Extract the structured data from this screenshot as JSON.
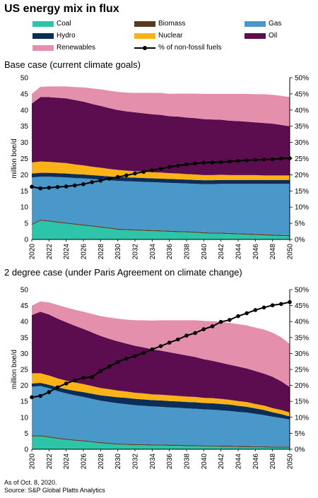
{
  "title": "US energy mix in flux",
  "legend": [
    {
      "key": "Coal",
      "label": "Coal",
      "color": "#2ec4a9"
    },
    {
      "key": "Biomass",
      "label": "Biomass",
      "color": "#5c3a1e"
    },
    {
      "key": "Gas",
      "label": "Gas",
      "color": "#4a97c9"
    },
    {
      "key": "Hydro",
      "label": "Hydro",
      "color": "#0b2e59"
    },
    {
      "key": "Nuclear",
      "label": "Nuclear",
      "color": "#fbb217"
    },
    {
      "key": "Oil",
      "label": "Oil",
      "color": "#5c0d4f"
    },
    {
      "key": "Renewables",
      "label": "Renewables",
      "color": "#e48fab"
    },
    {
      "key": "pct",
      "label": "% of non-fossil fuels",
      "color": "#000000"
    }
  ],
  "footer": {
    "line1": "As of Oct. 8, 2020.",
    "line2": "Source: S&P Global Platts Analytics"
  },
  "chart_data": [
    {
      "type": "area",
      "title": "Base case (current climate goals)",
      "ylabel": "million boe/d",
      "ylim": [
        0,
        50
      ],
      "y2lim": [
        0,
        50
      ],
      "yticks": [
        "0",
        "5",
        "10",
        "15",
        "20",
        "25",
        "30",
        "35",
        "40",
        "45",
        "50"
      ],
      "y2ticks": [
        "0%",
        "5%",
        "10%",
        "15%",
        "20%",
        "25%",
        "30%",
        "35%",
        "40%",
        "45%",
        "50%"
      ],
      "x": [
        2020,
        2021,
        2022,
        2023,
        2024,
        2025,
        2026,
        2027,
        2028,
        2029,
        2030,
        2031,
        2032,
        2033,
        2034,
        2035,
        2036,
        2037,
        2038,
        2039,
        2040,
        2041,
        2042,
        2043,
        2044,
        2045,
        2046,
        2047,
        2048,
        2049,
        2050
      ],
      "xticks": [
        "2020",
        "2022",
        "2024",
        "2026",
        "2028",
        "2030",
        "2032",
        "2034",
        "2036",
        "2038",
        "2040",
        "2042",
        "2044",
        "2046",
        "2048",
        "2050"
      ],
      "stack_order": [
        "Coal",
        "Biomass",
        "Gas",
        "Hydro",
        "Nuclear",
        "Oil",
        "Renewables"
      ],
      "series": [
        {
          "name": "Coal",
          "values": [
            4.5,
            5.8,
            5.6,
            5.2,
            4.9,
            4.6,
            4.3,
            4.0,
            3.7,
            3.4,
            3.0,
            2.9,
            2.8,
            2.7,
            2.6,
            2.5,
            2.4,
            2.3,
            2.2,
            2.1,
            1.9,
            1.8,
            1.8,
            1.7,
            1.6,
            1.5,
            1.4,
            1.3,
            1.2,
            1.1,
            1.0
          ]
        },
        {
          "name": "Biomass",
          "values": [
            0.3,
            0.3,
            0.3,
            0.3,
            0.3,
            0.3,
            0.3,
            0.3,
            0.3,
            0.3,
            0.3,
            0.3,
            0.3,
            0.3,
            0.3,
            0.3,
            0.3,
            0.3,
            0.3,
            0.3,
            0.3,
            0.3,
            0.3,
            0.3,
            0.3,
            0.3,
            0.3,
            0.3,
            0.3,
            0.3,
            0.3
          ]
        },
        {
          "name": "Gas",
          "values": [
            14.4,
            13.3,
            13.5,
            13.8,
            14.0,
            14.1,
            14.3,
            14.4,
            14.5,
            14.6,
            14.8,
            14.8,
            14.8,
            14.8,
            14.8,
            14.8,
            14.8,
            14.8,
            14.8,
            14.8,
            14.9,
            15.0,
            15.1,
            15.2,
            15.3,
            15.4,
            15.5,
            15.6,
            15.7,
            15.8,
            15.9
          ]
        },
        {
          "name": "Hydro",
          "values": [
            1.2,
            1.2,
            1.2,
            1.2,
            1.2,
            1.2,
            1.2,
            1.2,
            1.2,
            1.2,
            1.2,
            1.2,
            1.2,
            1.2,
            1.2,
            1.2,
            1.2,
            1.2,
            1.2,
            1.2,
            1.2,
            1.2,
            1.2,
            1.2,
            1.2,
            1.2,
            1.2,
            1.2,
            1.2,
            1.2,
            1.2
          ]
        },
        {
          "name": "Nuclear",
          "values": [
            3.4,
            3.5,
            3.4,
            3.3,
            3.2,
            3.0,
            2.8,
            2.6,
            2.5,
            2.3,
            2.2,
            2.1,
            2.0,
            2.0,
            1.9,
            1.9,
            1.8,
            1.8,
            1.7,
            1.7,
            1.6,
            1.6,
            1.6,
            1.5,
            1.5,
            1.5,
            1.5,
            1.4,
            1.4,
            1.4,
            1.4
          ]
        },
        {
          "name": "Oil",
          "values": [
            18.2,
            19.9,
            20.0,
            20.0,
            20.0,
            19.9,
            19.7,
            19.4,
            19.1,
            18.8,
            18.5,
            18.3,
            18.2,
            18.0,
            17.9,
            17.8,
            17.6,
            17.6,
            17.5,
            17.4,
            17.3,
            17.2,
            17.0,
            16.8,
            16.7,
            16.5,
            16.3,
            16.2,
            16.0,
            15.6,
            15.2
          ]
        },
        {
          "name": "Renewables",
          "values": [
            3.0,
            3.2,
            3.3,
            3.5,
            3.7,
            4.0,
            4.4,
            4.8,
            5.1,
            5.4,
            5.6,
            5.8,
            6.0,
            6.3,
            6.6,
            6.8,
            6.9,
            7.1,
            7.4,
            7.6,
            7.8,
            7.9,
            8.0,
            8.3,
            8.4,
            8.6,
            8.7,
            8.9,
            8.9,
            9.0,
            9.0
          ]
        }
      ],
      "line": {
        "name": "% of non-fossil fuels",
        "axis": "right",
        "values": [
          16.3,
          15.8,
          16.0,
          16.2,
          16.4,
          16.7,
          17.1,
          17.7,
          18.2,
          18.8,
          19.3,
          19.8,
          20.4,
          20.9,
          21.4,
          21.9,
          22.4,
          22.8,
          23.2,
          23.5,
          23.7,
          23.8,
          23.9,
          24.1,
          24.3,
          24.5,
          24.6,
          24.7,
          24.8,
          25.0,
          25.1
        ]
      }
    },
    {
      "type": "area",
      "title": "2 degree case (under Paris Agreement on climate change)",
      "ylabel": "million boe/d",
      "ylim": [
        0,
        50
      ],
      "y2lim": [
        0,
        50
      ],
      "yticks": [
        "0",
        "5",
        "10",
        "15",
        "20",
        "25",
        "30",
        "35",
        "40",
        "45",
        "50"
      ],
      "y2ticks": [
        "0%",
        "5%",
        "10%",
        "15%",
        "20%",
        "25%",
        "30%",
        "35%",
        "40%",
        "45%",
        "50%"
      ],
      "x": [
        2020,
        2021,
        2022,
        2023,
        2024,
        2025,
        2026,
        2027,
        2028,
        2029,
        2030,
        2031,
        2032,
        2033,
        2034,
        2035,
        2036,
        2037,
        2038,
        2039,
        2040,
        2041,
        2042,
        2043,
        2044,
        2045,
        2046,
        2047,
        2048,
        2049,
        2050
      ],
      "xticks": [
        "2020",
        "2022",
        "2024",
        "2026",
        "2028",
        "2030",
        "2032",
        "2034",
        "2036",
        "2038",
        "2040",
        "2042",
        "2044",
        "2046",
        "2048",
        "2050"
      ],
      "stack_order": [
        "Coal",
        "Biomass",
        "Gas",
        "Hydro",
        "Nuclear",
        "Oil",
        "Renewables"
      ],
      "series": [
        {
          "name": "Coal",
          "values": [
            4.0,
            4.1,
            3.7,
            3.3,
            3.0,
            2.7,
            2.5,
            2.2,
            1.9,
            1.7,
            1.5,
            1.4,
            1.3,
            1.3,
            1.2,
            1.2,
            1.1,
            1.1,
            1.0,
            1.0,
            0.9,
            0.9,
            0.8,
            0.8,
            0.7,
            0.7,
            0.6,
            0.6,
            0.5,
            0.5,
            0.5
          ]
        },
        {
          "name": "Biomass",
          "values": [
            0.3,
            0.3,
            0.3,
            0.3,
            0.3,
            0.3,
            0.3,
            0.3,
            0.3,
            0.3,
            0.3,
            0.3,
            0.3,
            0.3,
            0.3,
            0.3,
            0.3,
            0.3,
            0.3,
            0.3,
            0.3,
            0.3,
            0.3,
            0.3,
            0.3,
            0.3,
            0.3,
            0.3,
            0.3,
            0.3,
            0.3
          ]
        },
        {
          "name": "Gas",
          "values": [
            15.3,
            15.4,
            15.1,
            14.6,
            14.2,
            13.9,
            13.6,
            13.3,
            13.0,
            12.8,
            12.6,
            12.4,
            12.2,
            12.0,
            11.9,
            11.8,
            11.7,
            11.6,
            11.5,
            11.4,
            11.3,
            11.2,
            11.1,
            10.9,
            10.7,
            10.5,
            10.2,
            9.8,
            9.4,
            9.0,
            8.5
          ]
        },
        {
          "name": "Hydro",
          "values": [
            1.0,
            1.0,
            1.1,
            1.2,
            1.3,
            1.4,
            1.5,
            1.6,
            1.7,
            1.8,
            1.9,
            2.0,
            2.0,
            2.0,
            2.0,
            2.0,
            2.0,
            2.0,
            2.0,
            2.0,
            2.0,
            2.0,
            2.0,
            2.0,
            1.9,
            1.8,
            1.7,
            1.6,
            1.4,
            1.2,
            1.0
          ]
        },
        {
          "name": "Nuclear",
          "values": [
            3.2,
            3.0,
            2.9,
            2.8,
            2.7,
            2.6,
            2.5,
            2.4,
            2.3,
            2.2,
            2.1,
            2.0,
            1.9,
            1.9,
            1.8,
            1.8,
            1.8,
            1.7,
            1.7,
            1.7,
            1.6,
            1.6,
            1.6,
            1.5,
            1.5,
            1.5,
            1.4,
            1.4,
            1.3,
            1.3,
            1.2
          ]
        },
        {
          "name": "Oil",
          "values": [
            18.2,
            19.3,
            19.1,
            18.7,
            18.3,
            17.8,
            17.3,
            16.8,
            16.3,
            15.8,
            15.4,
            15.0,
            14.7,
            14.4,
            14.1,
            13.8,
            13.5,
            13.2,
            12.9,
            12.5,
            12.1,
            11.7,
            11.3,
            11.0,
            10.8,
            10.5,
            10.3,
            10.0,
            9.8,
            9.0,
            8.0
          ]
        },
        {
          "name": "Renewables",
          "values": [
            3.0,
            3.2,
            3.8,
            4.3,
            4.6,
            5.0,
            5.4,
            5.8,
            6.2,
            6.7,
            7.1,
            7.5,
            8.0,
            8.5,
            9.0,
            9.5,
            10.0,
            10.5,
            11.0,
            11.5,
            12.0,
            12.4,
            12.8,
            13.1,
            13.3,
            13.5,
            13.6,
            13.8,
            13.8,
            13.8,
            13.5
          ]
        }
      ],
      "line": {
        "name": "% of non-fossil fuels",
        "axis": "right",
        "values": [
          16.3,
          16.7,
          17.9,
          19.4,
          20.6,
          21.6,
          22.4,
          22.6,
          24.5,
          25.9,
          27.3,
          28.4,
          29.2,
          30.2,
          31.3,
          32.3,
          33.4,
          34.4,
          35.6,
          36.4,
          37.6,
          38.5,
          39.9,
          40.5,
          41.7,
          42.6,
          43.6,
          44.4,
          45.1,
          45.5,
          46.1
        ]
      }
    }
  ]
}
